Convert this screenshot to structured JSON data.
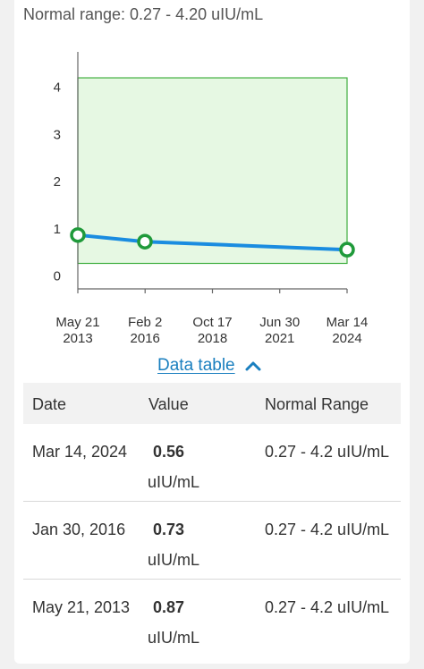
{
  "header": {
    "normal_range_text": "Normal range: 0.27 - 4.20 uIU/mL"
  },
  "chart_data": {
    "type": "line",
    "title": "",
    "xlabel": "",
    "ylabel": "",
    "ylim": [
      -0.27,
      4.75
    ],
    "y_ticks": [
      "0",
      "1",
      "2",
      "3",
      "4"
    ],
    "y_tick_values": [
      0,
      1,
      2,
      3,
      4
    ],
    "x_ticks": [
      {
        "line1": "May 21",
        "line2": "2013",
        "date": "2013-05-21"
      },
      {
        "line1": "Feb 2",
        "line2": "2016",
        "date": "2016-02-02"
      },
      {
        "line1": "Oct 17",
        "line2": "2018",
        "date": "2018-10-17"
      },
      {
        "line1": "Jun 30",
        "line2": "2021",
        "date": "2021-06-30"
      },
      {
        "line1": "Mar 14",
        "line2": "2024",
        "date": "2024-03-14"
      }
    ],
    "normal_band": [
      0.27,
      4.2
    ],
    "series": [
      {
        "points": [
          {
            "x": "2013-05-21",
            "y": 0.87
          },
          {
            "x": "2016-01-30",
            "y": 0.73
          },
          {
            "x": "2024-03-14",
            "y": 0.56
          }
        ]
      }
    ],
    "grid": false,
    "colors": {
      "line": "#1a8ce0",
      "marker": "#1f9a3a",
      "band_fill": "#e6f8e3",
      "band_stroke": "#3fae3f"
    }
  },
  "data_table_toggle": {
    "label": "Data table",
    "icon": "chevron-up-icon"
  },
  "table": {
    "headers": [
      "Date",
      "Value",
      "Normal Range"
    ],
    "rows": [
      {
        "date": "Mar 14, 2024",
        "value": "0.56",
        "unit": "uIU/mL",
        "range": "0.27 - 4.2 uIU/mL"
      },
      {
        "date": "Jan 30, 2016",
        "value": "0.73",
        "unit": "uIU/mL",
        "range": "0.27 - 4.2 uIU/mL"
      },
      {
        "date": "May 21, 2013",
        "value": "0.87",
        "unit": "uIU/mL",
        "range": "0.27 - 4.2 uIU/mL"
      }
    ]
  }
}
